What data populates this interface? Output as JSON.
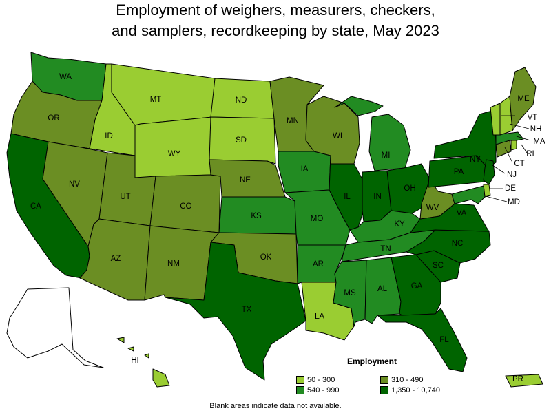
{
  "title": {
    "line1": "Employment of weighers, measurers, checkers,",
    "line2": "and samplers, recordkeeping by state, May 2023"
  },
  "legend": {
    "title": "Employment",
    "items": [
      {
        "label": "50 - 300",
        "color": "#9acd32"
      },
      {
        "label": "310 - 490",
        "color": "#6b8e23"
      },
      {
        "label": "540 - 990",
        "color": "#228b22"
      },
      {
        "label": "1,350 - 10,740",
        "color": "#006400"
      }
    ]
  },
  "note": "Blank areas indicate data not available.",
  "states": [
    {
      "abbr": "WA",
      "range": "540 - 990"
    },
    {
      "abbr": "OR",
      "range": "310 - 490"
    },
    {
      "abbr": "CA",
      "range": "1,350 - 10,740"
    },
    {
      "abbr": "ID",
      "range": "50 - 300"
    },
    {
      "abbr": "NV",
      "range": "310 - 490"
    },
    {
      "abbr": "MT",
      "range": "50 - 300"
    },
    {
      "abbr": "WY",
      "range": "50 - 300"
    },
    {
      "abbr": "UT",
      "range": "310 - 490"
    },
    {
      "abbr": "AZ",
      "range": "310 - 490"
    },
    {
      "abbr": "CO",
      "range": "310 - 490"
    },
    {
      "abbr": "NM",
      "range": "310 - 490"
    },
    {
      "abbr": "ND",
      "range": "50 - 300"
    },
    {
      "abbr": "SD",
      "range": "50 - 300"
    },
    {
      "abbr": "NE",
      "range": "310 - 490"
    },
    {
      "abbr": "KS",
      "range": "540 - 990"
    },
    {
      "abbr": "OK",
      "range": "310 - 490"
    },
    {
      "abbr": "TX",
      "range": "1,350 - 10,740"
    },
    {
      "abbr": "MN",
      "range": "310 - 490"
    },
    {
      "abbr": "IA",
      "range": "540 - 990"
    },
    {
      "abbr": "MO",
      "range": "540 - 990"
    },
    {
      "abbr": "AR",
      "range": "540 - 990"
    },
    {
      "abbr": "LA",
      "range": "50 - 300"
    },
    {
      "abbr": "WI",
      "range": "310 - 490"
    },
    {
      "abbr": "IL",
      "range": "1,350 - 10,740"
    },
    {
      "abbr": "MI",
      "range": "540 - 990"
    },
    {
      "abbr": "IN",
      "range": "1,350 - 10,740"
    },
    {
      "abbr": "OH",
      "range": "1,350 - 10,740"
    },
    {
      "abbr": "KY",
      "range": "540 - 990"
    },
    {
      "abbr": "TN",
      "range": "540 - 990"
    },
    {
      "abbr": "MS",
      "range": "540 - 990"
    },
    {
      "abbr": "AL",
      "range": "540 - 990"
    },
    {
      "abbr": "GA",
      "range": "1,350 - 10,740"
    },
    {
      "abbr": "FL",
      "range": "1,350 - 10,740"
    },
    {
      "abbr": "SC",
      "range": "1,350 - 10,740"
    },
    {
      "abbr": "NC",
      "range": "1,350 - 10,740"
    },
    {
      "abbr": "VA",
      "range": "1,350 - 10,740"
    },
    {
      "abbr": "WV",
      "range": "310 - 490"
    },
    {
      "abbr": "PA",
      "range": "1,350 - 10,740"
    },
    {
      "abbr": "NY",
      "range": "1,350 - 10,740"
    },
    {
      "abbr": "NJ",
      "range": "1,350 - 10,740"
    },
    {
      "abbr": "DE",
      "range": "50 - 300"
    },
    {
      "abbr": "MD",
      "range": "540 - 990"
    },
    {
      "abbr": "CT",
      "range": "310 - 490"
    },
    {
      "abbr": "RI",
      "range": "50 - 300"
    },
    {
      "abbr": "MA",
      "range": "540 - 990"
    },
    {
      "abbr": "VT",
      "range": "50 - 300"
    },
    {
      "abbr": "NH",
      "range": "50 - 300"
    },
    {
      "abbr": "ME",
      "range": "310 - 490"
    },
    {
      "abbr": "HI",
      "range": "50 - 300"
    },
    {
      "abbr": "PR",
      "range": "50 - 300"
    },
    {
      "abbr": "AK",
      "range": ""
    }
  ]
}
